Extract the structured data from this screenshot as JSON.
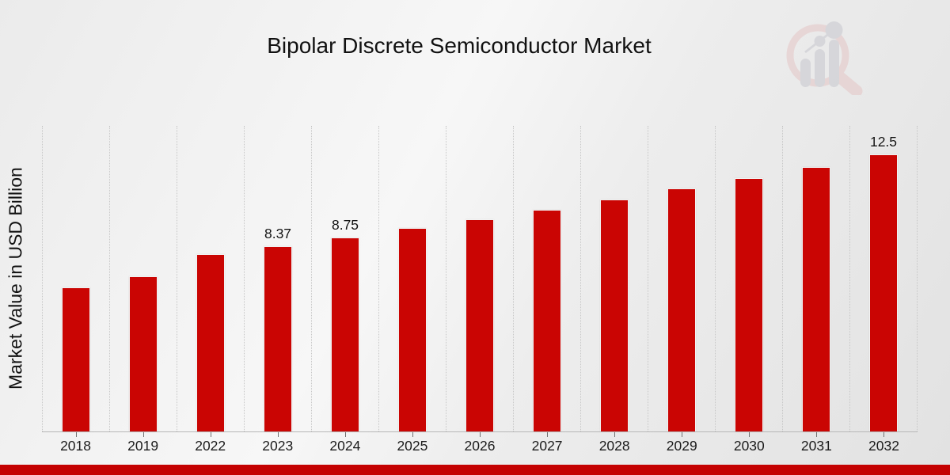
{
  "title": "Bipolar Discrete Semiconductor Market",
  "ylabel": "Market Value in USD Billion",
  "chart_data": {
    "type": "bar",
    "title": "Bipolar Discrete Semiconductor Market",
    "xlabel": "",
    "ylabel": "Market Value in USD Billion",
    "categories": [
      "2018",
      "2019",
      "2022",
      "2023",
      "2024",
      "2025",
      "2026",
      "2027",
      "2028",
      "2029",
      "2030",
      "2031",
      "2032"
    ],
    "values": [
      6.5,
      7.0,
      8.0,
      8.37,
      8.75,
      9.18,
      9.6,
      10.0,
      10.46,
      10.96,
      11.46,
      11.96,
      12.5
    ],
    "data_labels": [
      "",
      "",
      "",
      "8.37",
      "8.75",
      "",
      "",
      "",
      "",
      "",
      "",
      "",
      "12.5"
    ],
    "ylim": [
      0,
      13.8
    ],
    "grid": "vertical-dotted",
    "legend": "none",
    "bar_color": "#ca0503"
  },
  "branding": {
    "logo_icon": "magnifier-bar-chart-watermark",
    "accent_bar_color": "#c40101",
    "logo_ring_color": "#e4c2c2",
    "logo_bar_color": "#c3c4cb"
  }
}
